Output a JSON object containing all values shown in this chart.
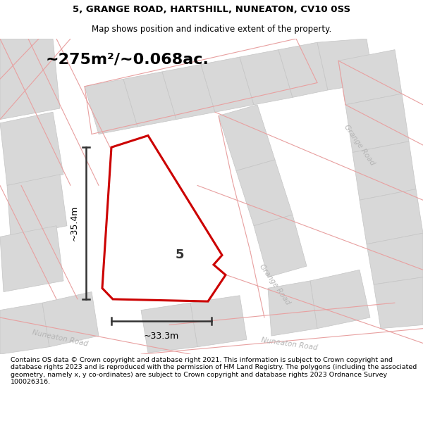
{
  "title": "5, GRANGE ROAD, HARTSHILL, NUNEATON, CV10 0SS",
  "subtitle": "Map shows position and indicative extent of the property.",
  "area_label": "~275m²/~0.068ac.",
  "property_number": "5",
  "dim_width_label": "~33.3m",
  "dim_height_label": "~35.4m",
  "title_fontsize": 9.5,
  "subtitle_fontsize": 8.5,
  "area_fontsize": 16,
  "footnote_fontsize": 6.8,
  "footnote": "Contains OS data © Crown copyright and database right 2021. This information is subject to Crown copyright and database rights 2023 and is reproduced with the permission of HM Land Registry. The polygons (including the associated geometry, namely x, y co-ordinates) are subject to Crown copyright and database rights 2023 Ordnance Survey 100026316.",
  "property_outline_color": "#cc0000",
  "property_fill": "#ffffff",
  "dim_line_color": "#333333",
  "map_bg": "#f2f2f2",
  "block_color": "#d8d8d8",
  "block_edge": "#c5c5c5",
  "road_line_color": "#e8a0a0",
  "road_label_color": "#b5b5b5"
}
